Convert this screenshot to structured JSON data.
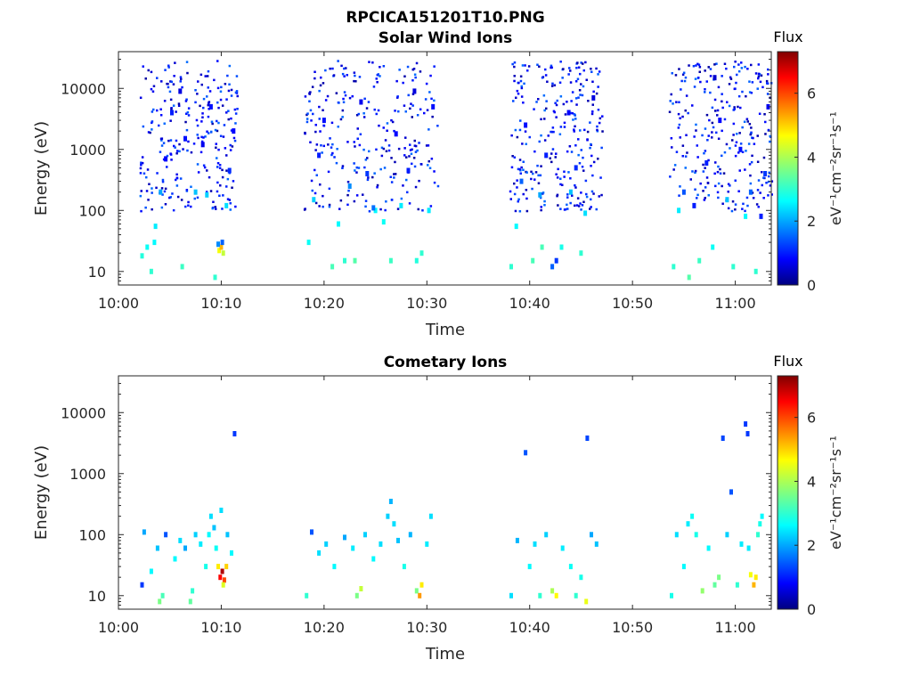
{
  "figure": {
    "filename_title": "RPCICA151201T10.PNG"
  },
  "colors": {
    "background": "#ffffff",
    "axis": "#262626",
    "colormap": [
      "#000080",
      "#0000ff",
      "#0080ff",
      "#00ffff",
      "#80ff80",
      "#ffff00",
      "#ff8000",
      "#ff0000",
      "#800000"
    ]
  },
  "chart_data": [
    {
      "type": "heatmap",
      "title": "Solar Wind Ions",
      "xlabel": "Time",
      "ylabel": "Energy (eV)",
      "x_ticks": [
        "10:00",
        "10:10",
        "10:20",
        "10:30",
        "10:40",
        "10:50",
        "11:00"
      ],
      "xlim_minutes": [
        0,
        63.5
      ],
      "y_scale": "log",
      "y_ticks": [
        10,
        100,
        1000,
        10000
      ],
      "y_tick_labels": [
        "10",
        "100",
        "1000",
        "10000"
      ],
      "ylim": [
        6,
        40000
      ],
      "colorbar": {
        "label": "Flux",
        "units_text": "eV⁻¹cm⁻²sr⁻¹s⁻¹",
        "range": [
          0,
          7.3
        ],
        "ticks": [
          0,
          2,
          4,
          6
        ],
        "tick_labels": [
          "0",
          "2",
          "4",
          "6"
        ]
      },
      "data_windows_minutes": [
        [
          2,
          11.5
        ],
        [
          18,
          31
        ],
        [
          38,
          47
        ],
        [
          53.5,
          63.5
        ]
      ],
      "points": [
        [
          2.3,
          18,
          2.9
        ],
        [
          2.8,
          25,
          2.7
        ],
        [
          3.2,
          10,
          3.0
        ],
        [
          3.5,
          30,
          2.6
        ],
        [
          3.6,
          55,
          2.5
        ],
        [
          4.1,
          200,
          2.0
        ],
        [
          4.6,
          700,
          0.8
        ],
        [
          5.2,
          4000,
          1.0
        ],
        [
          6.0,
          9000,
          0.6
        ],
        [
          6.5,
          1500,
          0.9
        ],
        [
          6.2,
          12,
          3.1
        ],
        [
          7.5,
          200,
          2.2
        ],
        [
          8.2,
          1200,
          0.7
        ],
        [
          8.6,
          180,
          2.3
        ],
        [
          9.0,
          5000,
          0.9
        ],
        [
          9.4,
          8,
          3.0
        ],
        [
          9.8,
          22,
          4.6
        ],
        [
          10.0,
          25,
          5.2
        ],
        [
          10.2,
          20,
          4.2
        ],
        [
          9.7,
          28,
          1.8
        ],
        [
          10.5,
          120,
          2.4
        ],
        [
          10.8,
          450,
          1.1
        ],
        [
          11.2,
          2000,
          0.8
        ],
        [
          10.1,
          30,
          1.5
        ],
        [
          18.5,
          30,
          2.7
        ],
        [
          19.0,
          150,
          2.3
        ],
        [
          19.5,
          800,
          1.0
        ],
        [
          20.0,
          3000,
          0.9
        ],
        [
          20.8,
          12,
          3.2
        ],
        [
          21.4,
          60,
          2.6
        ],
        [
          22.0,
          15,
          3.0
        ],
        [
          22.5,
          250,
          1.8
        ],
        [
          23.0,
          15,
          3.3
        ],
        [
          23.6,
          6000,
          0.7
        ],
        [
          24.2,
          400,
          1.2
        ],
        [
          25.0,
          100,
          2.6
        ],
        [
          25.8,
          65,
          2.7
        ],
        [
          26.5,
          15,
          3.1
        ],
        [
          27.0,
          1800,
          0.8
        ],
        [
          27.5,
          120,
          2.5
        ],
        [
          28.2,
          450,
          1.0
        ],
        [
          29.0,
          15,
          2.9
        ],
        [
          29.5,
          20,
          3.0
        ],
        [
          30.2,
          100,
          2.5
        ],
        [
          30.6,
          5000,
          0.9
        ],
        [
          24.8,
          110,
          1.6
        ],
        [
          28.8,
          9000,
          0.6
        ],
        [
          38.2,
          12,
          3.0
        ],
        [
          38.7,
          55,
          2.6
        ],
        [
          39.2,
          300,
          1.5
        ],
        [
          39.6,
          2500,
          0.9
        ],
        [
          40.3,
          15,
          3.2
        ],
        [
          41.0,
          180,
          2.0
        ],
        [
          41.6,
          800,
          1.0
        ],
        [
          42.2,
          12,
          1.5
        ],
        [
          42.6,
          15,
          1.2
        ],
        [
          43.1,
          25,
          2.8
        ],
        [
          43.8,
          4000,
          0.8
        ],
        [
          44.5,
          500,
          1.1
        ],
        [
          45.0,
          20,
          3.0
        ],
        [
          45.4,
          90,
          2.4
        ],
        [
          46.2,
          7000,
          0.6
        ],
        [
          41.2,
          25,
          3.2
        ],
        [
          44.0,
          200,
          2.2
        ],
        [
          54.0,
          12,
          3.0
        ],
        [
          54.5,
          100,
          2.5
        ],
        [
          55.0,
          200,
          1.4
        ],
        [
          55.5,
          8,
          3.3
        ],
        [
          56.0,
          120,
          1.0
        ],
        [
          56.5,
          15,
          3.1
        ],
        [
          57.2,
          600,
          1.0
        ],
        [
          57.8,
          25,
          2.7
        ],
        [
          58.5,
          3000,
          0.8
        ],
        [
          59.2,
          150,
          2.2
        ],
        [
          59.8,
          12,
          3.0
        ],
        [
          60.5,
          1000,
          0.9
        ],
        [
          61.0,
          80,
          2.6
        ],
        [
          61.5,
          200,
          1.5
        ],
        [
          62.0,
          10,
          3.0
        ],
        [
          62.5,
          80,
          1.0
        ],
        [
          62.9,
          400,
          1.2
        ],
        [
          63.2,
          5000,
          0.7
        ],
        [
          58.0,
          15000,
          0.5
        ]
      ]
    },
    {
      "type": "heatmap",
      "title": "Cometary Ions",
      "xlabel": "Time",
      "ylabel": "Energy (eV)",
      "x_ticks": [
        "10:00",
        "10:10",
        "10:20",
        "10:30",
        "10:40",
        "10:50",
        "11:00"
      ],
      "xlim_minutes": [
        0,
        63.5
      ],
      "y_scale": "log",
      "y_ticks": [
        10,
        100,
        1000,
        10000
      ],
      "y_tick_labels": [
        "10",
        "100",
        "1000",
        "10000"
      ],
      "ylim": [
        6,
        40000
      ],
      "colorbar": {
        "label": "Flux",
        "units_text": "eV⁻¹cm⁻²sr⁻¹s⁻¹",
        "range": [
          0,
          7.3
        ],
        "ticks": [
          0,
          2,
          4,
          6
        ],
        "tick_labels": [
          "0",
          "2",
          "4",
          "6"
        ]
      },
      "points": [
        [
          2.3,
          15,
          1.2
        ],
        [
          2.5,
          110,
          2.0
        ],
        [
          3.2,
          25,
          2.6
        ],
        [
          3.8,
          60,
          2.2
        ],
        [
          4.0,
          8,
          3.6
        ],
        [
          4.3,
          10,
          3.2
        ],
        [
          4.6,
          100,
          1.4
        ],
        [
          5.5,
          40,
          2.6
        ],
        [
          6.0,
          80,
          2.4
        ],
        [
          6.5,
          60,
          2.0
        ],
        [
          7.0,
          8,
          3.4
        ],
        [
          7.2,
          12,
          3.0
        ],
        [
          7.5,
          100,
          2.3
        ],
        [
          8.0,
          70,
          2.5
        ],
        [
          8.5,
          30,
          2.8
        ],
        [
          8.8,
          100,
          2.6
        ],
        [
          9.0,
          200,
          2.4
        ],
        [
          9.3,
          130,
          2.2
        ],
        [
          9.5,
          60,
          2.7
        ],
        [
          9.7,
          30,
          4.8
        ],
        [
          9.9,
          20,
          6.5
        ],
        [
          10.1,
          25,
          7.0
        ],
        [
          10.3,
          18,
          6.0
        ],
        [
          10.5,
          30,
          5.0
        ],
        [
          10.2,
          15,
          4.4
        ],
        [
          10.0,
          250,
          2.4
        ],
        [
          10.6,
          100,
          2.2
        ],
        [
          11.0,
          50,
          2.6
        ],
        [
          11.3,
          4500,
          1.2
        ],
        [
          18.3,
          10,
          3.0
        ],
        [
          18.8,
          110,
          1.4
        ],
        [
          19.5,
          50,
          2.4
        ],
        [
          20.2,
          70,
          2.3
        ],
        [
          21.0,
          30,
          2.6
        ],
        [
          22.0,
          90,
          2.0
        ],
        [
          22.8,
          60,
          2.5
        ],
        [
          23.2,
          10,
          3.6
        ],
        [
          23.6,
          13,
          4.2
        ],
        [
          24.0,
          100,
          2.3
        ],
        [
          24.8,
          40,
          2.6
        ],
        [
          25.5,
          70,
          2.4
        ],
        [
          26.2,
          200,
          2.3
        ],
        [
          26.5,
          350,
          2.1
        ],
        [
          26.8,
          150,
          2.4
        ],
        [
          27.2,
          80,
          2.2
        ],
        [
          27.8,
          30,
          2.8
        ],
        [
          28.4,
          100,
          2.1
        ],
        [
          29.0,
          12,
          3.6
        ],
        [
          29.3,
          10,
          5.4
        ],
        [
          29.5,
          15,
          4.8
        ],
        [
          30.0,
          70,
          2.5
        ],
        [
          30.4,
          200,
          2.4
        ],
        [
          38.2,
          10,
          2.4
        ],
        [
          38.8,
          80,
          2.1
        ],
        [
          39.6,
          2200,
          1.4
        ],
        [
          40.0,
          30,
          2.6
        ],
        [
          40.5,
          70,
          2.4
        ],
        [
          41.0,
          10,
          3.0
        ],
        [
          41.6,
          100,
          2.3
        ],
        [
          42.2,
          12,
          4.0
        ],
        [
          42.6,
          10,
          4.7
        ],
        [
          43.2,
          60,
          2.5
        ],
        [
          44.0,
          30,
          2.7
        ],
        [
          44.5,
          10,
          3.0
        ],
        [
          45.0,
          20,
          2.8
        ],
        [
          45.5,
          8,
          4.5
        ],
        [
          45.6,
          3800,
          1.3
        ],
        [
          46.0,
          100,
          2.0
        ],
        [
          46.5,
          70,
          2.2
        ],
        [
          53.8,
          10,
          2.8
        ],
        [
          54.3,
          100,
          2.4
        ],
        [
          55.0,
          30,
          2.6
        ],
        [
          55.4,
          150,
          2.5
        ],
        [
          55.8,
          200,
          2.7
        ],
        [
          56.2,
          100,
          2.8
        ],
        [
          56.8,
          12,
          3.8
        ],
        [
          57.4,
          60,
          2.6
        ],
        [
          58.0,
          15,
          3.4
        ],
        [
          58.4,
          20,
          3.6
        ],
        [
          58.8,
          3800,
          1.3
        ],
        [
          59.2,
          100,
          2.3
        ],
        [
          59.6,
          500,
          1.4
        ],
        [
          60.2,
          15,
          3.0
        ],
        [
          60.6,
          70,
          2.5
        ],
        [
          61.0,
          6500,
          1.2
        ],
        [
          61.2,
          4500,
          1.2
        ],
        [
          61.5,
          22,
          4.6
        ],
        [
          61.8,
          15,
          5.2
        ],
        [
          62.0,
          20,
          4.8
        ],
        [
          62.2,
          100,
          3.0
        ],
        [
          62.4,
          150,
          2.8
        ],
        [
          62.6,
          200,
          2.6
        ],
        [
          61.3,
          60,
          2.5
        ]
      ]
    }
  ]
}
